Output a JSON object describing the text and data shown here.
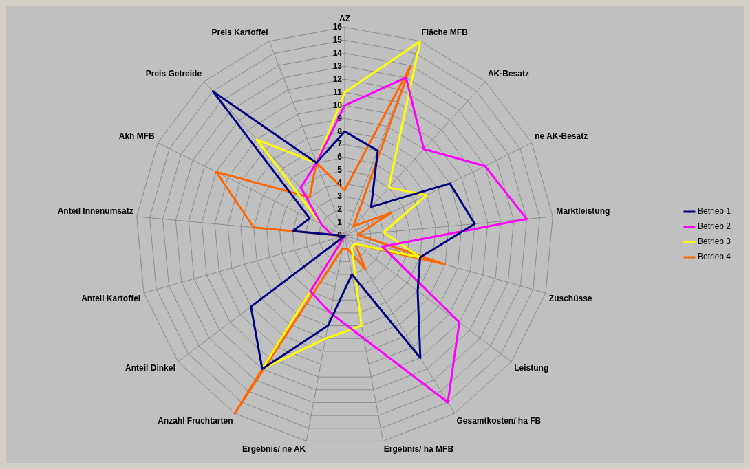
{
  "chart_data": {
    "type": "radar",
    "categories": [
      "AZ",
      "Fläche MFB",
      "AK-Besatz",
      "ne AK-Besatz",
      "Marktleistung",
      "Zuschüsse",
      "Leistung",
      "Gesamtkosten/ ha FB",
      "Ergebnis/ ha MFB",
      "Ergebnis/ ne AK",
      "Anzahl Fruchtarten",
      "Anteil Dinkel",
      "Anteil Kartoffel",
      "Anteil Innenumsatz",
      "Akh MFB",
      "Preis Getreide",
      "Preis Kartoffel"
    ],
    "series": [
      {
        "name": "Betrieb 1",
        "color": "#000080",
        "values": [
          8,
          7,
          3,
          9,
          10,
          6,
          7,
          11,
          3,
          7,
          12,
          9,
          0,
          4,
          3,
          15,
          6
        ]
      },
      {
        "name": "Betrieb 2",
        "color": "#ff00ff",
        "values": [
          10,
          13,
          9,
          12,
          14,
          3,
          11,
          15,
          8,
          6,
          5,
          0,
          0,
          1,
          2,
          5,
          6
        ]
      },
      {
        "name": "Betrieb 3",
        "color": "#ffff00",
        "values": [
          11,
          16,
          5,
          7,
          3,
          6,
          1,
          1,
          7,
          8,
          12,
          0,
          0,
          1,
          2,
          10,
          6
        ]
      },
      {
        "name": "Betrieb 4",
        "color": "#ff6600",
        "values": [
          3.5,
          14,
          1,
          4,
          1,
          8,
          1,
          3,
          1,
          1,
          16,
          0,
          0,
          7,
          11,
          4,
          6
        ]
      }
    ],
    "ylim": [
      0,
      16
    ],
    "yticks": [
      0,
      1,
      2,
      3,
      4,
      5,
      6,
      7,
      8,
      9,
      10,
      11,
      12,
      13,
      14,
      15,
      16
    ],
    "grid": true,
    "legend": "right",
    "marker": "none"
  }
}
